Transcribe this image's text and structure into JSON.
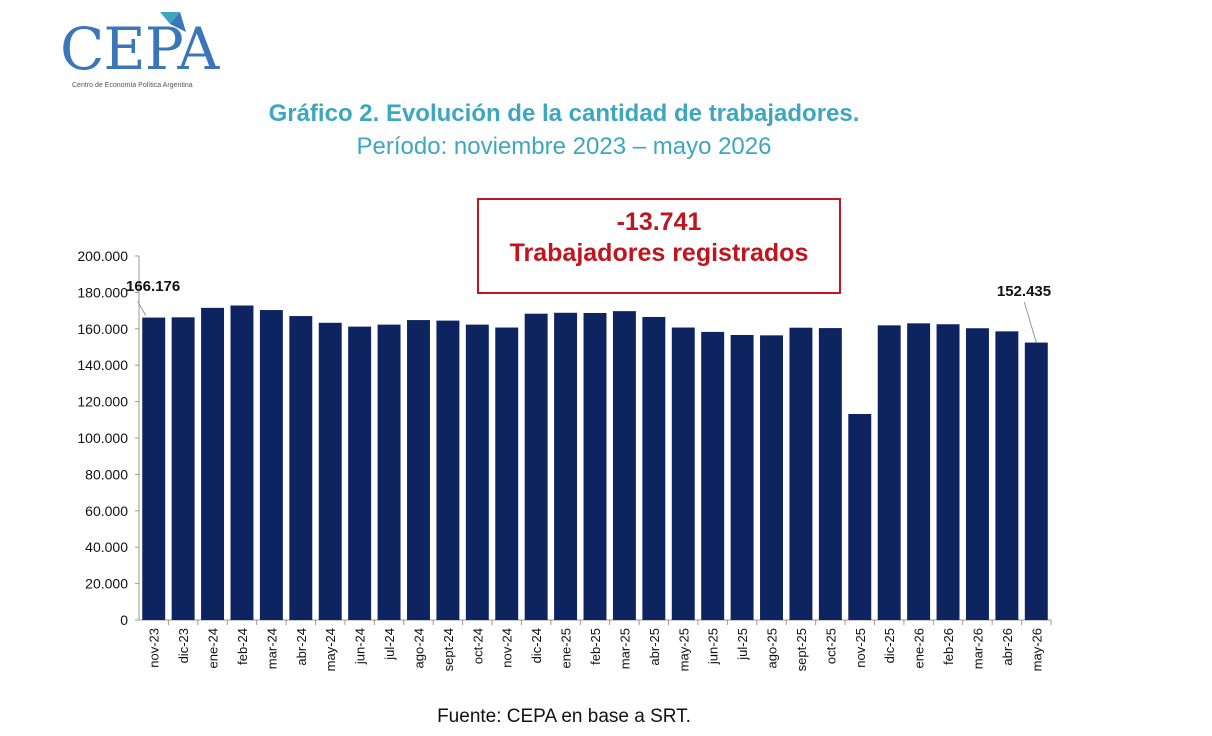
{
  "logo": {
    "text": "CEPA",
    "subtitle": "Centro de Economía Política Argentina"
  },
  "header": {
    "title": "Gráfico 2. Evolución de la cantidad de trabajadores.",
    "subtitle": "Período: noviembre 2023 – mayo 2026"
  },
  "annotation": {
    "value": "-13.741",
    "label": "Trabajadores registrados"
  },
  "footer": {
    "source": "Fuente: CEPA en base a SRT."
  },
  "colors": {
    "bar": "#0d2461",
    "title": "#3ea6c0",
    "annotation": "#c0141e",
    "logo": "#3a76b8"
  },
  "chart_data": {
    "type": "bar",
    "categories": [
      "nov-23",
      "dic-23",
      "ene-24",
      "feb-24",
      "mar-24",
      "abr-24",
      "may-24",
      "jun-24",
      "jul-24",
      "ago-24",
      "sept-24",
      "oct-24",
      "nov-24",
      "dic-24",
      "ene-25",
      "feb-25",
      "mar-25",
      "abr-25",
      "may-25",
      "jun-25",
      "jul-25",
      "ago-25",
      "sept-25",
      "oct-25",
      "nov-25",
      "dic-25",
      "ene-26",
      "feb-26",
      "mar-26",
      "abr-26",
      "may-26"
    ],
    "values": [
      166176,
      166300,
      171500,
      172800,
      170300,
      167000,
      163300,
      161200,
      162300,
      164800,
      164500,
      162300,
      160700,
      168300,
      168800,
      168700,
      169700,
      166500,
      160700,
      158300,
      156600,
      156400,
      160600,
      160400,
      113200,
      161900,
      163000,
      162500,
      160300,
      158600,
      152435
    ],
    "ylim": [
      0,
      200000
    ],
    "yticks": [
      "0",
      "20.000",
      "40.000",
      "60.000",
      "80.000",
      "100.000",
      "120.000",
      "140.000",
      "160.000",
      "180.000",
      "200.000"
    ],
    "data_labels": {
      "first": "166.176",
      "last": "152.435"
    },
    "grid": false,
    "legend": "none"
  }
}
